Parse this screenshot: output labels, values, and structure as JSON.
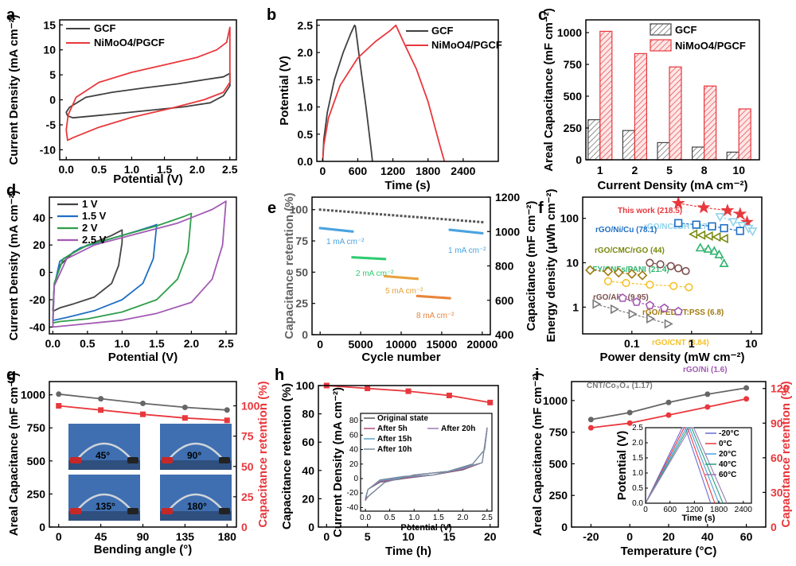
{
  "colors": {
    "gcf": "#404040",
    "nimoo4": "#e8383d",
    "retention": "#e8383d",
    "capacitance": "#666666"
  },
  "panels": {
    "a": {
      "label": "a",
      "legend": [
        "GCF",
        "NiMoO4/PGCF"
      ],
      "xlabel": "Potential (V)",
      "ylabel": "Current Density (mA cm⁻²)"
    },
    "b": {
      "label": "b",
      "legend": [
        "GCF",
        "NiMoO4/PGCF"
      ],
      "xlabel": "Time (s)",
      "ylabel": "Potential (V)"
    },
    "c": {
      "label": "c",
      "legend": [
        "GCF",
        "NiMoO4/PGCF"
      ],
      "xlabel": "Current Density (mA cm⁻²)",
      "ylabel": "Areal Capacitance (mF cm⁻²)"
    },
    "d": {
      "label": "d",
      "legend": [
        "1 V",
        "1.5 V",
        "2 V",
        "2.5 V"
      ],
      "xlabel": "Potential (V)",
      "ylabel": "Current Density (mA cm⁻²)"
    },
    "e": {
      "label": "e",
      "xlabel": "Cycle number",
      "ylabel_left": "Capacitance retention (%)",
      "ylabel_right": "Capacitance  (mF cm⁻²)",
      "annotations": [
        "1 mA cm⁻²",
        "2 mA cm⁻²",
        "5 mA cm⁻²",
        "8 mA cm⁻²",
        "1 mA cm⁻²"
      ]
    },
    "f": {
      "label": "f",
      "xlabel": "Power density (mW cm⁻²)",
      "ylabel": "Energy density (μWh cm⁻²)"
    },
    "g": {
      "label": "g",
      "xlabel": "Bending angle (°)",
      "ylabel_left": "Areal Capacitance (mF cm⁻²)",
      "ylabel_right": "Capacitance retention (%)",
      "photo_labels": [
        "45°",
        "90°",
        "135°",
        "180°"
      ]
    },
    "h": {
      "label": "h",
      "xlabel": "Time (h)",
      "ylabel": "Capacitance retention (%)",
      "inset_legend": [
        "Original state",
        "After 5h",
        "After 20h",
        "After 15h",
        "After 10h"
      ],
      "inset_xlabel": "Potential (V)",
      "inset_ylabel": "Current Density (mA cm⁻²)"
    },
    "i": {
      "label": "i",
      "xlabel": "Temperature (°C)",
      "ylabel_left": "Areal Capacitance (mF cm⁻²)",
      "ylabel_right": "Capacitance retention (%)",
      "inset_legend": [
        "-20°C",
        "0°C",
        "20°C",
        "40°C",
        "60°C"
      ],
      "inset_xlabel": "Time (s)",
      "inset_ylabel": "Potential (V)"
    }
  },
  "chart_data": [
    {
      "panel": "a",
      "type": "line",
      "xlim": [
        -0.1,
        2.6
      ],
      "ylim": [
        -12,
        16
      ],
      "xticks": [
        "0.0",
        "0.5",
        "1.0",
        "1.5",
        "2.0",
        "2.5"
      ],
      "yticks": [
        "-10",
        "-5",
        "0",
        "5",
        "10",
        "15"
      ],
      "series": [
        {
          "name": "GCF",
          "x": [
            0,
            0.05,
            0.3,
            0.7,
            1.2,
            1.7,
            2.1,
            2.4,
            2.5,
            2.5,
            2.4,
            2.2,
            1.8,
            1.2,
            0.6,
            0.1,
            0.02,
            0
          ],
          "y": [
            -2.5,
            -1.5,
            0.5,
            1.5,
            2.4,
            3.2,
            4.0,
            4.6,
            5.3,
            2.8,
            0.8,
            -0.6,
            -1.4,
            -2.2,
            -3.0,
            -3.6,
            -3.2,
            -2.5
          ]
        },
        {
          "name": "NiMoO4/PGCF",
          "x": [
            0,
            0.03,
            0.15,
            0.5,
            1.0,
            1.5,
            2.0,
            2.3,
            2.45,
            2.5,
            2.5,
            2.4,
            2.1,
            1.6,
            1.0,
            0.5,
            0.1,
            0.02,
            0
          ],
          "y": [
            -6,
            -3,
            0.5,
            3.5,
            5.5,
            7.0,
            8.5,
            10.0,
            11.5,
            14.5,
            3.5,
            1.5,
            0,
            -1.7,
            -3.5,
            -5.5,
            -7.6,
            -8.1,
            -6
          ]
        }
      ]
    },
    {
      "panel": "b",
      "type": "line",
      "xlim": [
        -100,
        3000
      ],
      "ylim": [
        0,
        2.6
      ],
      "xticks": [
        "0",
        "600",
        "1200",
        "1800",
        "2400"
      ],
      "yticks": [
        "0.0",
        "0.5",
        "1.0",
        "1.5",
        "2.0",
        "2.5"
      ],
      "series": [
        {
          "name": "GCF",
          "x": [
            0,
            20,
            80,
            200,
            350,
            480,
            545,
            560,
            640,
            740,
            830,
            850
          ],
          "y": [
            0,
            0.4,
            0.9,
            1.5,
            2.0,
            2.35,
            2.5,
            2.48,
            1.8,
            1.0,
            0.2,
            0
          ]
        },
        {
          "name": "NiMoO4/PGCF",
          "x": [
            0,
            20,
            100,
            300,
            600,
            900,
            1150,
            1250,
            1260,
            1400,
            1600,
            1800,
            2000,
            2080
          ],
          "y": [
            0,
            0.3,
            0.8,
            1.4,
            1.9,
            2.2,
            2.4,
            2.5,
            2.48,
            2.15,
            1.7,
            1.1,
            0.3,
            0
          ]
        }
      ]
    },
    {
      "panel": "c",
      "type": "bar",
      "categories": [
        "1",
        "2",
        "5",
        "8",
        "10"
      ],
      "ylim": [
        0,
        1100
      ],
      "yticks": [
        "0",
        "250",
        "500",
        "750",
        "1000"
      ],
      "series": [
        {
          "name": "GCF",
          "values": [
            315,
            230,
            135,
            100,
            60
          ]
        },
        {
          "name": "NiMoO4/PGCF",
          "values": [
            1010,
            835,
            730,
            580,
            400
          ]
        }
      ]
    },
    {
      "panel": "d",
      "type": "line",
      "xlim": [
        -0.05,
        2.65
      ],
      "ylim": [
        -45,
        55
      ],
      "xticks": [
        "0.0",
        "0.5",
        "1.0",
        "1.5",
        "2.0",
        "2.5"
      ],
      "yticks": [
        "-40",
        "-20",
        "0",
        "20",
        "40"
      ],
      "series": [
        {
          "name": "1 V",
          "x": [
            0,
            0.02,
            0.1,
            0.3,
            0.6,
            0.85,
            1.0,
            1.0,
            0.95,
            0.85,
            0.6,
            0.3,
            0.1,
            0.02,
            0
          ],
          "y": [
            -28,
            -10,
            5,
            15,
            22,
            27,
            31,
            22,
            5,
            -8,
            -18,
            -23,
            -26,
            -28,
            -28
          ]
        },
        {
          "name": "1.5 V",
          "x": [
            0,
            0.02,
            0.1,
            0.4,
            0.8,
            1.2,
            1.45,
            1.5,
            1.45,
            1.3,
            1.0,
            0.6,
            0.2,
            0.02,
            0
          ],
          "y": [
            -35,
            -10,
            8,
            18,
            24,
            30,
            34,
            35,
            10,
            -8,
            -20,
            -28,
            -33,
            -35,
            -35
          ]
        },
        {
          "name": "2 V",
          "x": [
            0,
            0.02,
            0.15,
            0.5,
            1.0,
            1.5,
            1.9,
            2.0,
            1.95,
            1.8,
            1.5,
            1.0,
            0.5,
            0.1,
            0
          ],
          "y": [
            -37,
            -8,
            10,
            20,
            27,
            34,
            41,
            43,
            15,
            -5,
            -20,
            -29,
            -34,
            -36,
            -37
          ]
        },
        {
          "name": "2.5 V",
          "x": [
            0,
            0.02,
            0.2,
            0.6,
            1.2,
            1.8,
            2.3,
            2.5,
            2.45,
            2.3,
            2.0,
            1.5,
            1.0,
            0.4,
            0
          ],
          "y": [
            -40,
            -10,
            10,
            20,
            28,
            36,
            46,
            52,
            20,
            -5,
            -22,
            -30,
            -35,
            -38,
            -40
          ]
        }
      ]
    },
    {
      "panel": "e",
      "type": "scatter",
      "xlim": [
        -1000,
        21000
      ],
      "ylim_left": [
        0,
        110
      ],
      "ylim_right": [
        400,
        1200
      ],
      "xticks": [
        "0",
        "5000",
        "10000",
        "15000",
        "20000"
      ],
      "yticks_left": [
        "0",
        "25",
        "50",
        "75",
        "100"
      ],
      "yticks_right": [
        "400",
        "600",
        "800",
        "1000",
        "1200"
      ],
      "series": [
        {
          "name": "Capacitance retention",
          "axis": "left",
          "x": [
            0,
            20000
          ],
          "y": [
            100,
            90
          ]
        },
        {
          "name": "1 mA cm⁻²",
          "axis": "right",
          "x": [
            0,
            4000
          ],
          "y": [
            1020,
            1000
          ]
        },
        {
          "name": "2 mA cm⁻²",
          "axis": "right",
          "x": [
            4000,
            8000
          ],
          "y": [
            850,
            840
          ]
        },
        {
          "name": "5 mA cm⁻²",
          "axis": "right",
          "x": [
            8000,
            12000
          ],
          "y": [
            740,
            725
          ]
        },
        {
          "name": "8 mA cm⁻²",
          "axis": "right",
          "x": [
            12000,
            16000
          ],
          "y": [
            625,
            612
          ]
        },
        {
          "name": "1 mA cm⁻²",
          "axis": "right",
          "x": [
            16000,
            20000
          ],
          "y": [
            1010,
            990
          ]
        }
      ]
    },
    {
      "panel": "f",
      "type": "scatter",
      "xscale": "log",
      "yscale": "log",
      "xlim": [
        0.015,
        15
      ],
      "ylim": [
        0.25,
        300
      ],
      "xticks": [
        "0.1",
        "1",
        "10"
      ],
      "yticks": [
        "1",
        "10",
        "100"
      ],
      "series": [
        {
          "name": "This work (218.5)",
          "color": "#e8383d",
          "marker": "star",
          "x": [
            0.6,
            1.6,
            4.0,
            6.5,
            8.5
          ],
          "y": [
            218.5,
            175,
            150,
            125,
            82
          ]
        },
        {
          "name": "rGO/NCLDH (117.3)",
          "color": "#8fd3ea",
          "marker": "tri-down",
          "x": [
            3,
            5,
            7,
            9,
            10.5
          ],
          "y": [
            110,
            85,
            70,
            60,
            52
          ]
        },
        {
          "name": "rGO/Ni/Cu (78.1)",
          "color": "#1f6fc4",
          "marker": "square",
          "x": [
            0.6,
            1.2,
            2.2,
            3.5,
            6.5
          ],
          "y": [
            78.1,
            72,
            66,
            60,
            52
          ]
        },
        {
          "name": "rGO/CMC/rGO (44)",
          "color": "#7a8a10",
          "marker": "tri-left",
          "x": [
            1.1,
            1.5,
            2.0,
            2.7,
            3.6
          ],
          "y": [
            44,
            42,
            40,
            38,
            35
          ]
        },
        {
          "name": "CFY/CNFs/PANI (21.4)",
          "color": "#2eb36e",
          "marker": "tri-up",
          "x": [
            1.4,
            1.9,
            2.4,
            2.9,
            3.5
          ],
          "y": [
            21.4,
            20,
            18,
            15,
            9.5
          ]
        },
        {
          "name": "rGO/Al³⁺ (9.95)",
          "color": "#7d4f4f",
          "marker": "circle",
          "x": [
            0.2,
            0.3,
            0.45,
            0.6,
            0.8
          ],
          "y": [
            9.95,
            9.2,
            8.4,
            7.5,
            6.5
          ]
        },
        {
          "name": "rGO/PEDOT:PSS (6.8)",
          "color": "#a07a10",
          "marker": "diamond",
          "x": [
            0.02,
            0.04,
            0.06,
            0.1,
            0.15
          ],
          "y": [
            6.8,
            6.4,
            6.0,
            5.6,
            5.2
          ]
        },
        {
          "name": "rGO/CNT (3.84)",
          "color": "#f4c12b",
          "marker": "circle",
          "x": [
            0.04,
            0.08,
            0.2,
            0.5,
            0.9
          ],
          "y": [
            3.84,
            3.5,
            3.2,
            3.0,
            2.8
          ]
        },
        {
          "name": "rGO/Ni (1.6)",
          "color": "#a25ab3",
          "marker": "pentagon",
          "x": [
            0.07,
            0.12,
            0.2,
            0.35,
            0.6
          ],
          "y": [
            1.6,
            1.3,
            1.1,
            0.95,
            0.8
          ]
        },
        {
          "name": "CNT/Co₃O₄ (1.17)",
          "color": "#7a7a7a",
          "marker": "tri-right",
          "x": [
            0.025,
            0.05,
            0.1,
            0.2,
            0.4
          ],
          "y": [
            1.17,
            0.9,
            0.7,
            0.55,
            0.42
          ]
        }
      ]
    },
    {
      "panel": "g",
      "type": "line",
      "xlim": [
        -10,
        190
      ],
      "ylim_left": [
        0,
        1100
      ],
      "ylim_right": [
        0,
        120
      ],
      "x": [
        0,
        45,
        90,
        135,
        180
      ],
      "xticks": [
        "0",
        "45",
        "90",
        "135",
        "180"
      ],
      "yticks_left": [
        "0",
        "250",
        "500",
        "750",
        "1000"
      ],
      "yticks_right": [
        "0",
        "25",
        "50",
        "75",
        "100"
      ],
      "series": [
        {
          "name": "Areal Capacitance",
          "axis": "left",
          "values": [
            1005,
            970,
            935,
            905,
            885
          ]
        },
        {
          "name": "Capacitance retention",
          "axis": "right",
          "values": [
            100,
            96.5,
            93,
            90,
            88
          ]
        }
      ]
    },
    {
      "panel": "h",
      "type": "line",
      "xlim": [
        -1,
        21
      ],
      "ylim": [
        0,
        100
      ],
      "x": [
        0,
        5,
        10,
        15,
        20
      ],
      "xticks": [
        "0",
        "5",
        "10",
        "15",
        "20"
      ],
      "yticks": [
        "0",
        "20",
        "40",
        "60",
        "80",
        "100"
      ],
      "series": [
        {
          "name": "Capacitance retention",
          "values": [
            100,
            98,
            96,
            93,
            88
          ]
        }
      ],
      "inset": {
        "type": "line",
        "xlim": [
          -0.1,
          2.6
        ],
        "ylim": [
          -45,
          90
        ],
        "xticks": [
          "0.0",
          "0.5",
          "1.0",
          "1.5",
          "2.0",
          "2.5"
        ],
        "yticks": [
          "-40",
          "-20",
          "0",
          "20",
          "40",
          "60",
          "80"
        ]
      }
    },
    {
      "panel": "i",
      "type": "line",
      "xlim": [
        -30,
        70
      ],
      "ylim_left": [
        0,
        1150
      ],
      "ylim_right": [
        0,
        126
      ],
      "x": [
        -20,
        0,
        20,
        40,
        60
      ],
      "xticks": [
        "-20",
        "0",
        "20",
        "40",
        "60"
      ],
      "yticks_left": [
        "0",
        "250",
        "500",
        "750",
        "1000"
      ],
      "yticks_right": [
        "0",
        "30",
        "60",
        "90",
        "120"
      ],
      "series": [
        {
          "name": "Areal Capacitance",
          "axis": "left",
          "values": [
            850,
            905,
            985,
            1050,
            1100
          ]
        },
        {
          "name": "Capacitance retention",
          "axis": "right",
          "values": [
            86,
            90,
            97,
            104,
            111
          ]
        }
      ],
      "inset": {
        "type": "line",
        "xlim": [
          0,
          2600
        ],
        "ylim": [
          0,
          2.5
        ],
        "xticks": [
          "0",
          "600",
          "1200",
          "1800",
          "2400"
        ],
        "yticks": [
          "0.0",
          "0.5",
          "1.0",
          "1.5",
          "2.0",
          "2.5"
        ],
        "series": [
          {
            "name": "-20°C",
            "x": [
              0,
              900,
              980,
              1600
            ],
            "y": [
              0,
              2.5,
              2.5,
              0
            ]
          },
          {
            "name": "0°C",
            "x": [
              0,
              950,
              1030,
              1700
            ],
            "y": [
              0,
              2.5,
              2.5,
              0
            ]
          },
          {
            "name": "20°C",
            "x": [
              0,
              1000,
              1080,
              1800
            ],
            "y": [
              0,
              2.5,
              2.5,
              0
            ]
          },
          {
            "name": "40°C",
            "x": [
              0,
              1050,
              1130,
              1900
            ],
            "y": [
              0,
              2.5,
              2.5,
              0
            ]
          },
          {
            "name": "60°C",
            "x": [
              0,
              1100,
              1180,
              2000
            ],
            "y": [
              0,
              2.5,
              2.5,
              0
            ]
          }
        ]
      }
    }
  ]
}
